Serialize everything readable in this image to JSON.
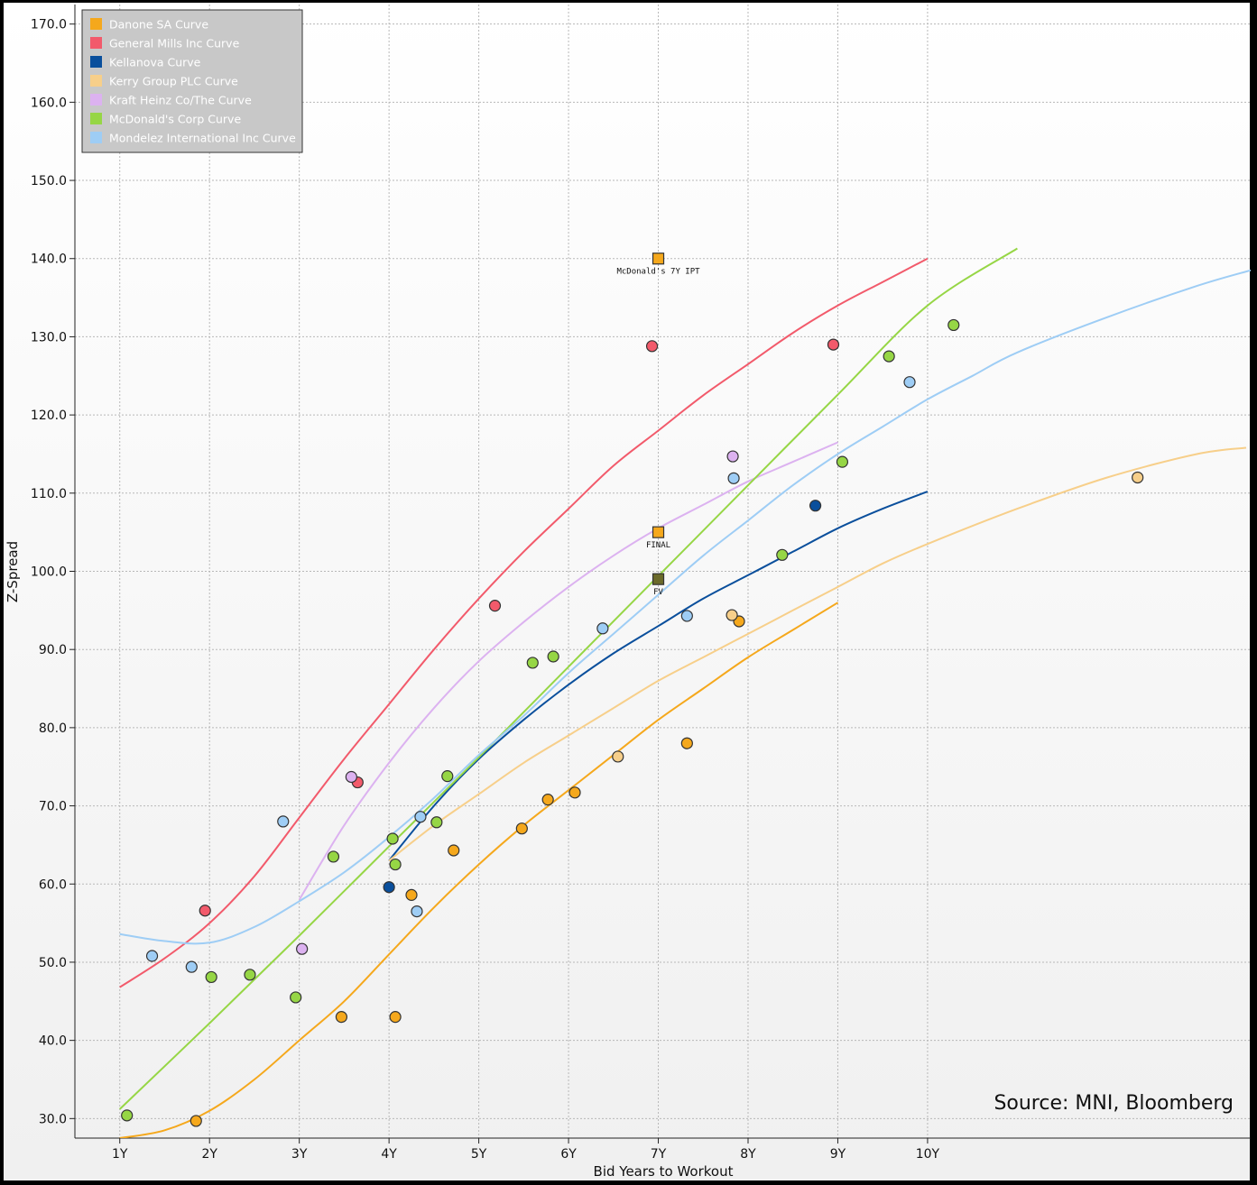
{
  "chart_data": {
    "type": "scatter",
    "title": "",
    "xlabel": "Bid Years to Workout",
    "ylabel": "Z-Spread",
    "xlim": [
      0.5,
      13.6
    ],
    "ylim": [
      27.5,
      172.5
    ],
    "x_ticks": [
      1,
      2,
      3,
      4,
      5,
      6,
      7,
      8,
      9,
      10
    ],
    "x_tick_labels": [
      "1Y",
      "2Y",
      "3Y",
      "4Y",
      "5Y",
      "6Y",
      "7Y",
      "8Y",
      "9Y",
      "10Y"
    ],
    "y_ticks": [
      30,
      40,
      50,
      60,
      70,
      80,
      90,
      100,
      110,
      120,
      130,
      140,
      150,
      160,
      170
    ],
    "y_tick_labels": [
      "30.0",
      "40.0",
      "50.0",
      "60.0",
      "70.0",
      "80.0",
      "90.0",
      "100.0",
      "110.0",
      "120.0",
      "130.0",
      "140.0",
      "150.0",
      "160.0",
      "170.0"
    ],
    "grid": true,
    "legend_position": "top-left",
    "source_note": "Source: MNI, Bloomberg",
    "series": [
      {
        "name": "Danone SA Curve",
        "color": "#f5a81c",
        "curve": [
          [
            1.0,
            27.5
          ],
          [
            1.5,
            28.5
          ],
          [
            2.0,
            31
          ],
          [
            2.5,
            35
          ],
          [
            3.0,
            40
          ],
          [
            3.5,
            45
          ],
          [
            4.0,
            51
          ],
          [
            4.5,
            57
          ],
          [
            5.0,
            62.5
          ],
          [
            5.5,
            67.5
          ],
          [
            6.0,
            72
          ],
          [
            6.5,
            76.5
          ],
          [
            7.0,
            81
          ],
          [
            7.5,
            85
          ],
          [
            8.0,
            89
          ],
          [
            8.5,
            92.5
          ],
          [
            9.0,
            96
          ]
        ],
        "points": [
          [
            1.85,
            29.7
          ],
          [
            3.47,
            43
          ],
          [
            4.07,
            43
          ],
          [
            4.25,
            58.6
          ],
          [
            4.72,
            64.3
          ],
          [
            5.48,
            67.1
          ],
          [
            5.77,
            70.8
          ],
          [
            6.07,
            71.7
          ],
          [
            7.32,
            78
          ],
          [
            7.9,
            93.6
          ]
        ]
      },
      {
        "name": "General Mills Inc Curve",
        "color": "#f25a6b",
        "curve": [
          [
            1.0,
            46.8
          ],
          [
            1.5,
            50.5
          ],
          [
            2.0,
            55
          ],
          [
            2.5,
            61
          ],
          [
            3.0,
            68.5
          ],
          [
            3.5,
            76
          ],
          [
            4.0,
            83
          ],
          [
            4.5,
            90
          ],
          [
            5.0,
            96.5
          ],
          [
            5.5,
            102.5
          ],
          [
            6.0,
            108
          ],
          [
            6.5,
            113.5
          ],
          [
            7.0,
            118
          ],
          [
            7.5,
            122.5
          ],
          [
            8.0,
            126.5
          ],
          [
            8.5,
            130.5
          ],
          [
            9.0,
            134
          ],
          [
            9.5,
            137
          ],
          [
            10.0,
            140
          ]
        ],
        "points": [
          [
            1.95,
            56.6
          ],
          [
            3.65,
            73
          ],
          [
            5.18,
            95.6
          ],
          [
            6.93,
            128.8
          ],
          [
            8.95,
            129
          ]
        ]
      },
      {
        "name": "Kellanova Curve",
        "color": "#0a4f9c",
        "curve": [
          [
            4.0,
            63
          ],
          [
            4.5,
            70
          ],
          [
            5.0,
            76
          ],
          [
            5.5,
            81
          ],
          [
            6.0,
            85.5
          ],
          [
            6.5,
            89.5
          ],
          [
            7.0,
            93
          ],
          [
            7.5,
            96.5
          ],
          [
            8.0,
            99.5
          ],
          [
            8.5,
            102.5
          ],
          [
            9.0,
            105.5
          ],
          [
            9.5,
            108
          ],
          [
            10.0,
            110.2
          ]
        ],
        "points": [
          [
            4.0,
            59.6
          ],
          [
            8.75,
            108.4
          ]
        ]
      },
      {
        "name": "Kerry Group PLC Curve",
        "color": "#f7cf8a",
        "curve": [
          [
            4.0,
            63
          ],
          [
            4.5,
            67.5
          ],
          [
            5.0,
            71.5
          ],
          [
            5.5,
            75.5
          ],
          [
            6.0,
            79
          ],
          [
            6.5,
            82.5
          ],
          [
            7.0,
            86
          ],
          [
            7.5,
            89
          ],
          [
            8.0,
            92
          ],
          [
            8.5,
            95
          ],
          [
            9.0,
            98
          ],
          [
            9.5,
            101
          ],
          [
            10.0,
            103.5
          ],
          [
            11.0,
            108
          ],
          [
            12.0,
            112
          ],
          [
            13.0,
            115
          ],
          [
            13.55,
            115.8
          ]
        ],
        "points": [
          [
            6.55,
            76.3
          ],
          [
            7.82,
            94.4
          ],
          [
            12.34,
            112
          ]
        ]
      },
      {
        "name": "Kraft Heinz Co/The Curve",
        "color": "#dcb2f0",
        "curve": [
          [
            3.0,
            58
          ],
          [
            3.5,
            67.5
          ],
          [
            4.0,
            75.5
          ],
          [
            4.5,
            82.5
          ],
          [
            5.0,
            88.5
          ],
          [
            5.5,
            93.5
          ],
          [
            6.0,
            98
          ],
          [
            6.5,
            102
          ],
          [
            7.0,
            105.5
          ],
          [
            7.5,
            108.5
          ],
          [
            8.0,
            111.5
          ],
          [
            8.5,
            114
          ],
          [
            9.0,
            116.5
          ]
        ],
        "points": [
          [
            3.03,
            51.7
          ],
          [
            3.58,
            73.7
          ],
          [
            7.83,
            114.7
          ]
        ]
      },
      {
        "name": "McDonald's Corp Curve",
        "color": "#96d645",
        "curve": [
          [
            1.0,
            31.2
          ],
          [
            2.0,
            42.2
          ],
          [
            3.0,
            53.4
          ],
          [
            4.0,
            64.8
          ],
          [
            5.0,
            76.2
          ],
          [
            6.0,
            87.8
          ],
          [
            7.0,
            99.4
          ],
          [
            8.0,
            111
          ],
          [
            9.0,
            122.6
          ],
          [
            10.0,
            134
          ],
          [
            11.0,
            141.3
          ]
        ],
        "points": [
          [
            1.08,
            30.4
          ],
          [
            2.02,
            48.1
          ],
          [
            2.45,
            48.4
          ],
          [
            2.96,
            45.5
          ],
          [
            3.38,
            63.5
          ],
          [
            4.04,
            65.8
          ],
          [
            4.07,
            62.5
          ],
          [
            4.53,
            67.9
          ],
          [
            4.65,
            73.8
          ],
          [
            5.6,
            88.3
          ],
          [
            5.83,
            89.1
          ],
          [
            8.38,
            102.1
          ],
          [
            9.05,
            114
          ],
          [
            9.57,
            127.5
          ],
          [
            10.29,
            131.5
          ]
        ]
      },
      {
        "name": "Mondelez International Inc Curve",
        "color": "#9ecdf5",
        "curve": [
          [
            1.0,
            53.6
          ],
          [
            1.5,
            52.7
          ],
          [
            2.0,
            52.5
          ],
          [
            2.5,
            54.5
          ],
          [
            3.0,
            57.8
          ],
          [
            3.5,
            61.5
          ],
          [
            4.0,
            66
          ],
          [
            4.5,
            71
          ],
          [
            5.0,
            76.5
          ],
          [
            5.5,
            81.5
          ],
          [
            6.0,
            87
          ],
          [
            6.5,
            92
          ],
          [
            7.0,
            97
          ],
          [
            7.5,
            102
          ],
          [
            8.0,
            106.5
          ],
          [
            8.5,
            111
          ],
          [
            9.0,
            115
          ],
          [
            9.5,
            118.5
          ],
          [
            10.0,
            122
          ],
          [
            10.5,
            125
          ],
          [
            11.0,
            128
          ],
          [
            12.0,
            132.5
          ],
          [
            13.0,
            136.5
          ],
          [
            13.6,
            138.5
          ]
        ],
        "points": [
          [
            1.36,
            50.8
          ],
          [
            1.8,
            49.4
          ],
          [
            2.82,
            68
          ],
          [
            4.31,
            56.5
          ],
          [
            4.35,
            68.6
          ],
          [
            6.38,
            92.7
          ],
          [
            7.32,
            94.3
          ],
          [
            7.84,
            111.9
          ],
          [
            9.8,
            124.2
          ]
        ]
      }
    ],
    "annotations": [
      {
        "label": "McDonald's 7Y IPT",
        "x": 7.0,
        "y": 140,
        "color": "#f5a81c",
        "marker": "square"
      },
      {
        "label": "FINAL",
        "x": 7.0,
        "y": 105,
        "color": "#f5a81c",
        "marker": "square"
      },
      {
        "label": "FV",
        "x": 7.0,
        "y": 99,
        "color": "#6b6a2a",
        "marker": "square"
      }
    ]
  }
}
